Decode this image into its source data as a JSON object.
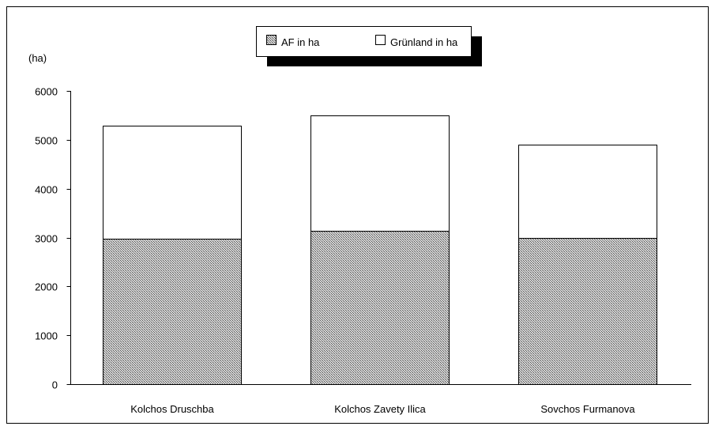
{
  "chart_data": {
    "type": "bar",
    "stacked": true,
    "ylabel": "(ha)",
    "ylim": [
      0,
      6000
    ],
    "yticks": [
      "0",
      "1000",
      "2000",
      "3000",
      "4000",
      "5000",
      "6000"
    ],
    "categories": [
      "Kolchos Druschba",
      "Kolchos Zavety Ilica",
      "Sovchos Furmanova"
    ],
    "series": [
      {
        "name": "AF in ha",
        "values": [
          2980,
          3130,
          2990
        ],
        "fill": "hatched-gray"
      },
      {
        "name": "Grünland in ha",
        "values": [
          2310,
          2370,
          1910
        ],
        "fill": "#ffffff"
      }
    ],
    "legend_position": "top-center",
    "grid": false
  }
}
